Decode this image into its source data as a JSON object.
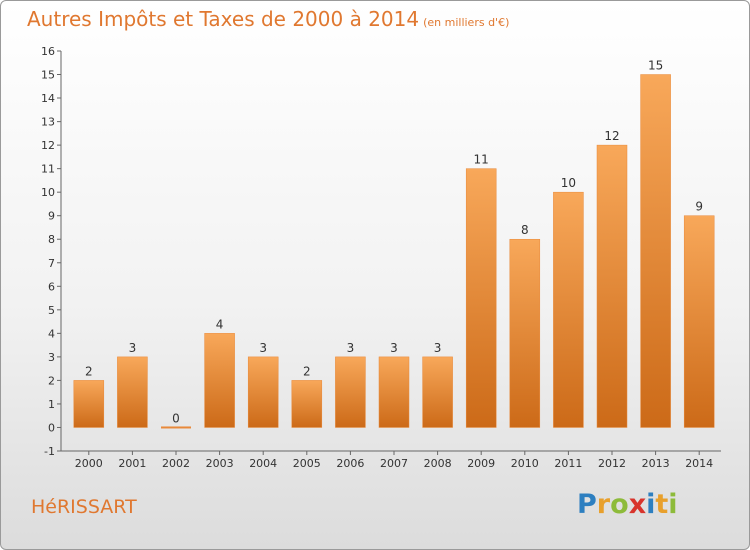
{
  "title": "Autres Impôts et Taxes de 2000 à 2014",
  "title_unit": "(en milliers d'€)",
  "commune": "HéRISSART",
  "logo_letters": [
    {
      "ch": "P",
      "color": "#2d7fc0"
    },
    {
      "ch": "r",
      "color": "#e8a02c"
    },
    {
      "ch": "o",
      "color": "#8dbb3a"
    },
    {
      "ch": "x",
      "color": "#d8342c"
    },
    {
      "ch": "i",
      "color": "#2d7fc0"
    },
    {
      "ch": "t",
      "color": "#e8a02c"
    },
    {
      "ch": "i",
      "color": "#8dbb3a"
    }
  ],
  "colors": {
    "bar_top": "#f8a85a",
    "bar_bottom": "#cc6a18",
    "bar_edge": "#e8893a",
    "text": "#333333",
    "accent": "#e07830"
  },
  "chart_data": {
    "type": "bar",
    "categories": [
      "2000",
      "2001",
      "2002",
      "2003",
      "2004",
      "2005",
      "2006",
      "2007",
      "2008",
      "2009",
      "2010",
      "2011",
      "2012",
      "2013",
      "2014"
    ],
    "values": [
      2,
      3,
      0,
      4,
      3,
      2,
      3,
      3,
      3,
      11,
      8,
      10,
      12,
      15,
      9
    ],
    "ylim": [
      -1,
      16
    ],
    "yticks": [
      -1,
      0,
      1,
      2,
      3,
      4,
      5,
      6,
      7,
      8,
      9,
      10,
      11,
      12,
      13,
      14,
      15,
      16
    ],
    "grid": false,
    "xlabel": "",
    "ylabel": ""
  }
}
